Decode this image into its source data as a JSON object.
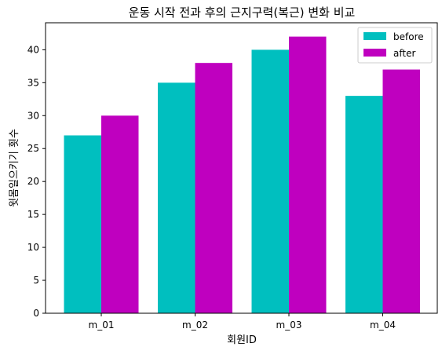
{
  "colors": {
    "before": "#00bfbf",
    "after": "#bf00bf"
  },
  "chart_data": {
    "type": "bar",
    "title": "운동 시작 전과 후의 근지구력(복근) 변화 비교",
    "xlabel": "회원ID",
    "ylabel": "윗몸일으키기 횟수",
    "categories": [
      "m_01",
      "m_02",
      "m_03",
      "m_04"
    ],
    "series": [
      {
        "name": "before",
        "values": [
          27,
          35,
          40,
          33
        ]
      },
      {
        "name": "after",
        "values": [
          30,
          38,
          42,
          37
        ]
      }
    ],
    "ylim": [
      0,
      44.1
    ],
    "yticks": [
      0,
      5,
      10,
      15,
      20,
      25,
      30,
      35,
      40
    ],
    "grid": false,
    "legend_position": "top-right"
  }
}
